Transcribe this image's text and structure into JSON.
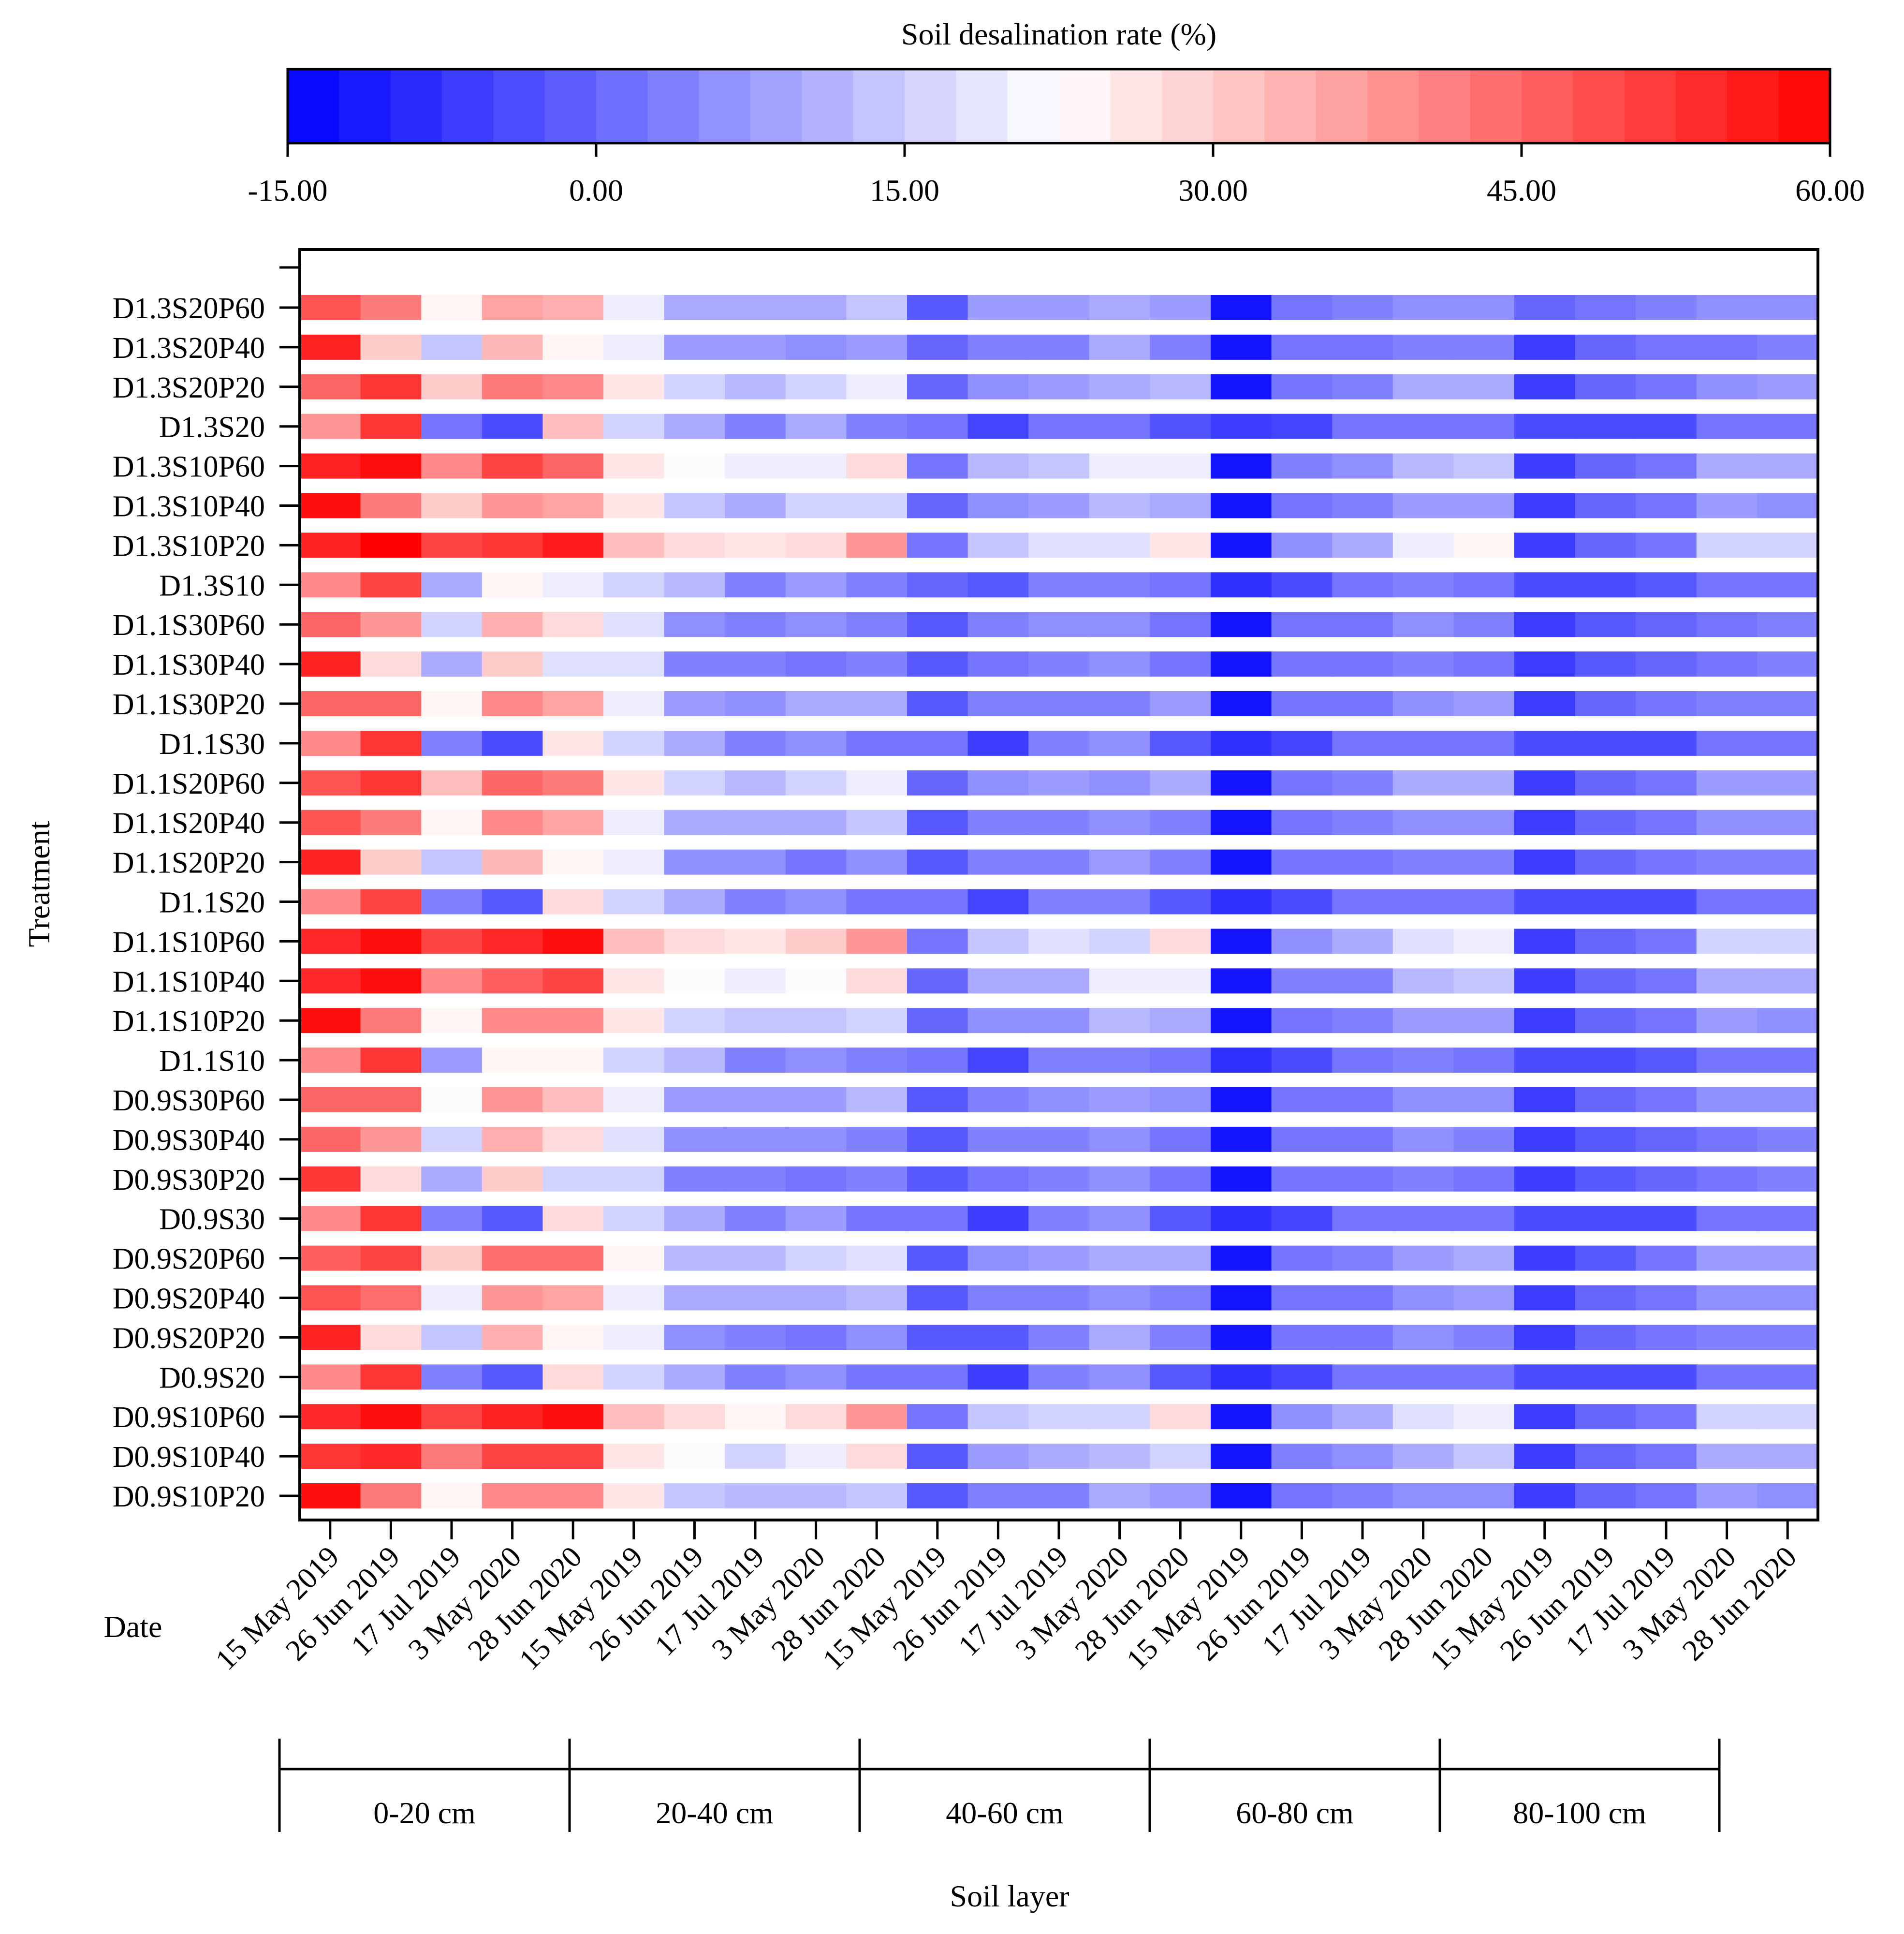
{
  "chart_data": {
    "type": "heatmap",
    "colorbar": {
      "title": "Soil desalination rate (%)",
      "min": -15,
      "max": 60,
      "tick_values": [
        -15,
        0,
        15,
        30,
        45,
        60
      ],
      "tick_labels": [
        "-15.00",
        "0.00",
        "15.00",
        "30.00",
        "45.00",
        "60.00"
      ],
      "low_color": "#0000ff",
      "mid_color": "#ffffff",
      "high_color": "#ff0000",
      "white_point": 22.5
    },
    "ylabel": "Treatment",
    "xlabel": "Soil layer",
    "date_axis_title": "Date",
    "treatments": [
      "D1.3S20P60",
      "D1.3S20P40",
      "D1.3S20P20",
      "D1.3S20",
      "D1.3S10P60",
      "D1.3S10P40",
      "D1.3S10P20",
      "D1.3S10",
      "D1.1S30P60",
      "D1.1S30P40",
      "D1.1S30P20",
      "D1.1S30",
      "D1.1S20P60",
      "D1.1S20P40",
      "D1.1S20P20",
      "D1.1S20",
      "D1.1S10P60",
      "D1.1S10P40",
      "D1.1S10P20",
      "D1.1S10",
      "D0.9S30P60",
      "D0.9S30P40",
      "D0.9S30P20",
      "D0.9S30",
      "D0.9S20P60",
      "D0.9S20P40",
      "D0.9S20P20",
      "D0.9S20",
      "D0.9S10P60",
      "D0.9S10P40",
      "D0.9S10P20"
    ],
    "layers": [
      "0-20 cm",
      "20-40 cm",
      "40-60 cm",
      "60-80 cm",
      "80-100 cm"
    ],
    "dates": [
      "15 May 2019",
      "26 Jun 2019",
      "17 Jul 2019",
      "3 May 2020",
      "28 Jun 2020"
    ],
    "values": [
      [
        48,
        42,
        24,
        36,
        34,
        20,
        10,
        10,
        10,
        14,
        -2,
        8,
        8,
        10,
        8,
        -12,
        2,
        4,
        6,
        6,
        0,
        2,
        4,
        6,
        6
      ],
      [
        55,
        30,
        14,
        33,
        24,
        20,
        8,
        8,
        6,
        8,
        0,
        4,
        4,
        10,
        4,
        -12,
        2,
        2,
        4,
        4,
        -6,
        0,
        2,
        2,
        4
      ],
      [
        45,
        52,
        30,
        42,
        40,
        26,
        16,
        12,
        16,
        20,
        0,
        6,
        8,
        10,
        12,
        -12,
        2,
        4,
        10,
        10,
        -6,
        0,
        2,
        6,
        8
      ],
      [
        38,
        52,
        2,
        -4,
        32,
        16,
        10,
        4,
        10,
        4,
        2,
        -5,
        2,
        2,
        -3,
        -6,
        -5,
        2,
        2,
        2,
        -4,
        -4,
        -4,
        2,
        2
      ],
      [
        55,
        58,
        40,
        50,
        45,
        26,
        22,
        20,
        20,
        28,
        2,
        12,
        14,
        20,
        20,
        -12,
        4,
        6,
        12,
        14,
        -6,
        0,
        2,
        10,
        10
      ],
      [
        58,
        42,
        30,
        38,
        36,
        26,
        14,
        10,
        16,
        16,
        0,
        6,
        8,
        12,
        10,
        -12,
        2,
        4,
        8,
        8,
        -6,
        0,
        2,
        8,
        6
      ],
      [
        55,
        60,
        50,
        52,
        56,
        32,
        28,
        26,
        28,
        38,
        2,
        14,
        18,
        18,
        26,
        -12,
        6,
        10,
        20,
        24,
        -6,
        0,
        2,
        16,
        16
      ],
      [
        40,
        50,
        10,
        24,
        20,
        16,
        12,
        4,
        8,
        4,
        0,
        -2,
        4,
        4,
        2,
        -8,
        -4,
        2,
        4,
        2,
        -4,
        -4,
        -2,
        2,
        2
      ],
      [
        45,
        38,
        16,
        34,
        28,
        18,
        6,
        4,
        6,
        4,
        -2,
        4,
        6,
        6,
        2,
        -12,
        2,
        2,
        6,
        4,
        -6,
        -2,
        0,
        2,
        4
      ],
      [
        55,
        28,
        10,
        30,
        18,
        18,
        4,
        4,
        2,
        4,
        -2,
        2,
        4,
        6,
        2,
        -12,
        2,
        2,
        4,
        2,
        -6,
        -2,
        0,
        2,
        4
      ],
      [
        45,
        45,
        24,
        40,
        36,
        20,
        8,
        6,
        10,
        10,
        -2,
        4,
        4,
        4,
        8,
        -12,
        2,
        2,
        6,
        8,
        -6,
        0,
        2,
        4,
        4
      ],
      [
        40,
        52,
        4,
        -4,
        26,
        16,
        10,
        4,
        6,
        2,
        2,
        -6,
        4,
        6,
        -2,
        -8,
        -5,
        2,
        2,
        2,
        -4,
        -4,
        -4,
        2,
        2
      ],
      [
        48,
        52,
        32,
        45,
        42,
        26,
        16,
        12,
        16,
        20,
        0,
        6,
        8,
        6,
        10,
        -12,
        2,
        4,
        10,
        10,
        -6,
        0,
        2,
        8,
        8
      ],
      [
        48,
        42,
        24,
        40,
        36,
        20,
        10,
        10,
        10,
        14,
        -2,
        4,
        4,
        6,
        4,
        -12,
        2,
        4,
        6,
        6,
        -6,
        0,
        2,
        6,
        6
      ],
      [
        55,
        30,
        14,
        33,
        24,
        20,
        6,
        6,
        2,
        6,
        -2,
        4,
        4,
        8,
        4,
        -12,
        2,
        2,
        4,
        4,
        -6,
        0,
        2,
        4,
        4
      ],
      [
        40,
        50,
        4,
        -2,
        28,
        16,
        10,
        4,
        6,
        2,
        2,
        -5,
        4,
        4,
        -2,
        -8,
        -4,
        2,
        2,
        2,
        -4,
        -4,
        -4,
        2,
        2
      ],
      [
        54,
        58,
        50,
        54,
        58,
        32,
        28,
        26,
        30,
        38,
        2,
        14,
        18,
        16,
        28,
        -12,
        6,
        10,
        18,
        20,
        -6,
        0,
        2,
        16,
        16
      ],
      [
        54,
        58,
        40,
        46,
        50,
        26,
        22,
        20,
        22,
        28,
        0,
        10,
        10,
        20,
        20,
        -12,
        4,
        4,
        12,
        14,
        -6,
        0,
        2,
        10,
        10
      ],
      [
        58,
        42,
        24,
        40,
        40,
        26,
        16,
        14,
        14,
        16,
        0,
        6,
        6,
        12,
        10,
        -12,
        2,
        4,
        8,
        8,
        -6,
        0,
        2,
        8,
        6
      ],
      [
        40,
        52,
        8,
        24,
        24,
        16,
        12,
        4,
        6,
        4,
        2,
        -5,
        4,
        4,
        2,
        -8,
        -4,
        2,
        4,
        2,
        -4,
        -4,
        -2,
        2,
        2
      ],
      [
        45,
        45,
        22,
        38,
        32,
        20,
        8,
        8,
        8,
        12,
        -2,
        4,
        6,
        8,
        6,
        -12,
        2,
        2,
        6,
        6,
        -6,
        0,
        2,
        6,
        6
      ],
      [
        45,
        38,
        16,
        34,
        28,
        18,
        6,
        6,
        6,
        4,
        -2,
        4,
        4,
        6,
        2,
        -12,
        2,
        2,
        6,
        4,
        -6,
        -2,
        0,
        2,
        4
      ],
      [
        52,
        28,
        10,
        30,
        16,
        16,
        4,
        4,
        2,
        4,
        -2,
        2,
        4,
        6,
        2,
        -12,
        2,
        2,
        4,
        2,
        -6,
        -2,
        0,
        2,
        4
      ],
      [
        40,
        52,
        4,
        -2,
        28,
        16,
        10,
        4,
        8,
        2,
        2,
        -6,
        4,
        6,
        -2,
        -8,
        -5,
        2,
        2,
        2,
        -4,
        -4,
        -4,
        2,
        2
      ],
      [
        46,
        50,
        30,
        44,
        44,
        24,
        12,
        12,
        16,
        18,
        -2,
        6,
        8,
        10,
        10,
        -12,
        2,
        4,
        8,
        10,
        -6,
        -2,
        2,
        8,
        8
      ],
      [
        48,
        44,
        20,
        38,
        36,
        20,
        10,
        10,
        10,
        12,
        -2,
        4,
        4,
        6,
        4,
        -12,
        2,
        2,
        6,
        8,
        -6,
        0,
        2,
        6,
        6
      ],
      [
        55,
        28,
        14,
        34,
        24,
        20,
        6,
        4,
        2,
        6,
        -2,
        -2,
        4,
        10,
        4,
        -12,
        2,
        2,
        6,
        4,
        -6,
        0,
        2,
        4,
        4
      ],
      [
        40,
        52,
        4,
        -2,
        28,
        16,
        10,
        4,
        6,
        2,
        2,
        -6,
        4,
        6,
        -2,
        -8,
        -5,
        2,
        2,
        2,
        -4,
        -4,
        -4,
        2,
        2
      ],
      [
        54,
        58,
        50,
        55,
        58,
        32,
        28,
        24,
        28,
        38,
        2,
        14,
        16,
        16,
        28,
        -12,
        6,
        10,
        18,
        20,
        -6,
        0,
        2,
        16,
        16
      ],
      [
        52,
        54,
        42,
        50,
        50,
        26,
        22,
        16,
        20,
        28,
        -2,
        8,
        10,
        12,
        16,
        -12,
        4,
        6,
        10,
        14,
        -6,
        0,
        2,
        10,
        10
      ],
      [
        58,
        42,
        24,
        40,
        40,
        26,
        14,
        12,
        12,
        14,
        -2,
        4,
        4,
        10,
        8,
        -12,
        2,
        4,
        6,
        6,
        -6,
        0,
        2,
        8,
        6
      ]
    ]
  }
}
